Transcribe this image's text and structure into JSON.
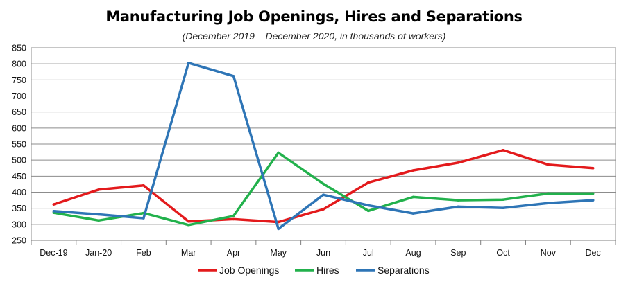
{
  "chart_data": {
    "type": "line",
    "title": "Manufacturing Job Openings, Hires and Separations",
    "subtitle": "(December 2019 – December 2020, in thousands of workers)",
    "xlabel": "",
    "ylabel": "",
    "ylim": [
      250,
      850
    ],
    "yticks": [
      250,
      300,
      350,
      400,
      450,
      500,
      550,
      600,
      650,
      700,
      750,
      800,
      850
    ],
    "grid": true,
    "legend_position": "bottom",
    "categories": [
      "Dec-19",
      "Jan-20",
      "Feb",
      "Mar",
      "Apr",
      "May",
      "Jun",
      "Jul",
      "Aug",
      "Sep",
      "Oct",
      "Nov",
      "Dec"
    ],
    "series": [
      {
        "name": "Job Openings",
        "color": "#e31a1c",
        "values": [
          362,
          408,
          421,
          309,
          316,
          307,
          347,
          430,
          468,
          492,
          531,
          486,
          475
        ]
      },
      {
        "name": "Hires",
        "color": "#22b14c",
        "values": [
          336,
          312,
          335,
          298,
          326,
          523,
          426,
          342,
          385,
          375,
          377,
          396,
          396
        ]
      },
      {
        "name": "Separations",
        "color": "#2e75b6",
        "values": [
          341,
          331,
          319,
          803,
          762,
          286,
          392,
          359,
          334,
          355,
          351,
          366,
          375
        ]
      }
    ]
  }
}
